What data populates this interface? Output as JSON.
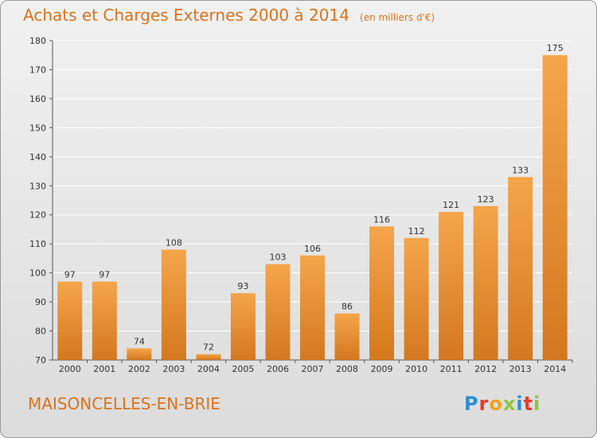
{
  "header": {
    "title": "Achats et Charges Externes 2000 à 2014",
    "unit": "(en milliers d'€)"
  },
  "footer": {
    "commune": "MAISONCELLES-EN-BRIE",
    "logo": "Proxiti",
    "logo_colors": [
      "#2b8fd6",
      "#e8392c",
      "#f2a21e",
      "#8cc63f",
      "#2b8fd6",
      "#e8392c",
      "#8cc63f"
    ]
  },
  "colors": {
    "accent": "#d9731d",
    "bar_light": "#f5a54a",
    "bar_dark": "#d4781f",
    "gridline": "#ffffff",
    "axis": "#555555"
  },
  "chart_data": {
    "type": "bar",
    "title": "Achats et Charges Externes 2000 à 2014",
    "subtitle": "(en milliers d'€)",
    "xlabel": "",
    "ylabel": "",
    "categories": [
      "2000",
      "2001",
      "2002",
      "2003",
      "2004",
      "2005",
      "2006",
      "2007",
      "2008",
      "2009",
      "2010",
      "2011",
      "2012",
      "2013",
      "2014"
    ],
    "values": [
      97,
      97,
      74,
      108,
      72,
      93,
      103,
      106,
      86,
      116,
      112,
      121,
      123,
      133,
      175
    ],
    "ylim": [
      70,
      180
    ],
    "yticks": [
      70,
      80,
      90,
      100,
      110,
      120,
      130,
      140,
      150,
      160,
      170,
      180
    ],
    "grid": "horizontal",
    "data_labels": true
  }
}
